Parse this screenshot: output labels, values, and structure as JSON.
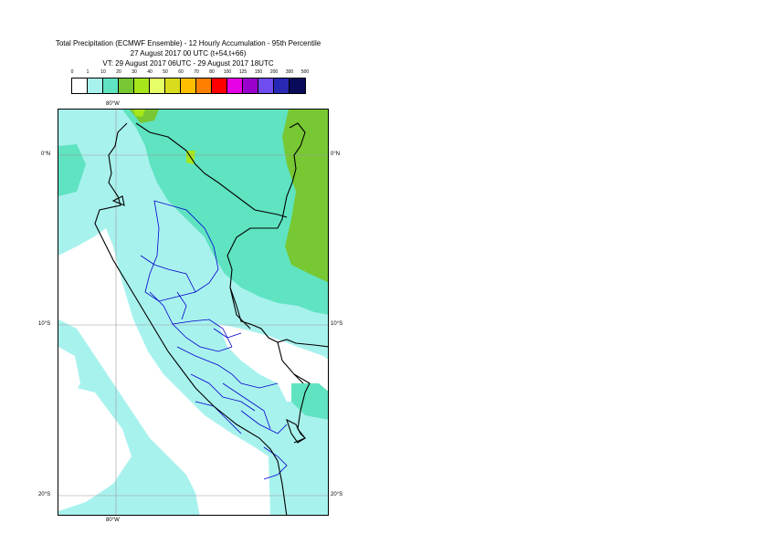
{
  "title": {
    "line1": "Total Precipitation (ECMWF Ensemble) - 12 Hourly Accumulation - 95th Percentile",
    "line2": "27 August 2017 00 UTC (t+54,t+66)",
    "line3": "VT: 29 August 2017 06UTC - 29 August 2017 18UTC"
  },
  "legend": {
    "ticks": [
      "0",
      "1",
      "10",
      "20",
      "30",
      "40",
      "50",
      "60",
      "70",
      "80",
      "100",
      "125",
      "150",
      "200",
      "300",
      "500"
    ],
    "colors": [
      "#ffffff",
      "#a8f2ee",
      "#5fe3c0",
      "#77c832",
      "#a6e61b",
      "#e6ff66",
      "#d9dc1c",
      "#ffbe00",
      "#ff8000",
      "#ff0000",
      "#e600e6",
      "#9900cc",
      "#6e4cee",
      "#2828b4",
      "#0a0a5a"
    ]
  },
  "axes": {
    "top_lon": "80°W",
    "bottom_lon": "80°W",
    "lat_left": [
      "0°N",
      "10°S",
      "20°S"
    ],
    "lat_right": [
      "0°N",
      "10°S",
      "20°S"
    ]
  },
  "map_colors": {
    "background": "#ffffff",
    "light": "#a8f2ee",
    "medium": "#5fe3c0",
    "green": "#77c832",
    "lime": "#a6e61b",
    "coast": "#000000",
    "regions": "#0000cc",
    "grid": "#9a9a9a"
  }
}
